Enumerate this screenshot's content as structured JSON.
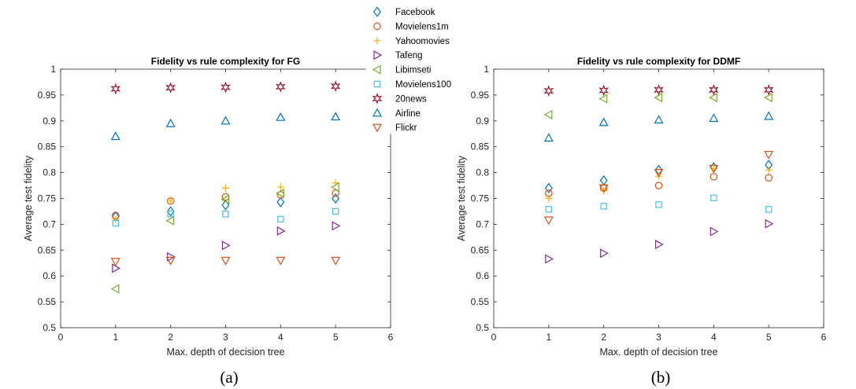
{
  "panels": [
    {
      "title": "Fidelity vs rule complexity for FG",
      "caption": "(a)",
      "ylabel": "Average test fidelity",
      "xlabel": "Max. depth of decision tree",
      "xticks": [
        "0",
        "1",
        "2",
        "3",
        "4",
        "5",
        "6"
      ],
      "yticks": [
        "0.5",
        "0.55",
        "0.6",
        "0.65",
        "0.7",
        "0.75",
        "0.8",
        "0.85",
        "0.9",
        "0.95",
        "1"
      ]
    },
    {
      "title": "Fidelity vs rule complexity for DDMF",
      "caption": "(b)",
      "ylabel": "Average test fidelity",
      "xlabel": "Max. depth of decision tree",
      "xticks": [
        "0",
        "1",
        "2",
        "3",
        "4",
        "5",
        "6"
      ],
      "yticks": [
        "0.5",
        "0.55",
        "0.6",
        "0.65",
        "0.7",
        "0.75",
        "0.8",
        "0.85",
        "0.9",
        "0.95",
        "1"
      ]
    }
  ],
  "legend": {
    "placement": "top-center, overlapping panel (a)",
    "entries": [
      {
        "label": "Facebook",
        "marker": "diamond",
        "color": "#0072BD"
      },
      {
        "label": "Movielens1m",
        "marker": "circle",
        "color": "#D95319"
      },
      {
        "label": "Yahoomovies",
        "marker": "plus",
        "color": "#EDB120"
      },
      {
        "label": "Tafeng",
        "marker": "triangle-right",
        "color": "#7E2F8E"
      },
      {
        "label": "Libimseti",
        "marker": "triangle-left",
        "color": "#77AC30"
      },
      {
        "label": "Movielens100",
        "marker": "square",
        "color": "#4DBEEE"
      },
      {
        "label": "20news",
        "marker": "hexagram",
        "color": "#A2142F"
      },
      {
        "label": "Airline",
        "marker": "triangle-up",
        "color": "#0072BD"
      },
      {
        "label": "Flickr",
        "marker": "triangle-down",
        "color": "#D95319"
      }
    ]
  },
  "chart_data": [
    {
      "type": "scatter",
      "title": "Fidelity vs rule complexity for FG",
      "xlabel": "Max. depth of decision tree",
      "ylabel": "Average test fidelity",
      "xlim": [
        0,
        6
      ],
      "ylim": [
        0.5,
        1
      ],
      "grid": false,
      "x": [
        1,
        2,
        3,
        4,
        5
      ],
      "series": [
        {
          "name": "Facebook",
          "values": [
            0.715,
            0.725,
            0.737,
            0.743,
            0.75
          ]
        },
        {
          "name": "Movielens1m",
          "values": [
            0.717,
            0.745,
            0.753,
            0.757,
            0.76
          ]
        },
        {
          "name": "Yahoomovies",
          "values": [
            0.71,
            0.745,
            0.77,
            0.772,
            0.78
          ]
        },
        {
          "name": "Tafeng",
          "values": [
            0.615,
            0.637,
            0.659,
            0.687,
            0.697
          ]
        },
        {
          "name": "Libimseti",
          "values": [
            0.575,
            0.707,
            0.748,
            0.76,
            0.772
          ]
        },
        {
          "name": "Movielens100",
          "values": [
            0.702,
            0.72,
            0.72,
            0.71,
            0.725
          ]
        },
        {
          "name": "20news",
          "values": [
            0.962,
            0.964,
            0.965,
            0.966,
            0.967
          ]
        },
        {
          "name": "Airline",
          "values": [
            0.87,
            0.895,
            0.9,
            0.907,
            0.908
          ]
        },
        {
          "name": "Flickr",
          "values": [
            0.628,
            0.63,
            0.63,
            0.63,
            0.63
          ]
        }
      ]
    },
    {
      "type": "scatter",
      "title": "Fidelity vs rule complexity for DDMF",
      "xlabel": "Max. depth of decision tree",
      "ylabel": "Average test fidelity",
      "xlim": [
        0,
        6
      ],
      "ylim": [
        0.5,
        1
      ],
      "grid": false,
      "x": [
        1,
        2,
        3,
        4,
        5
      ],
      "series": [
        {
          "name": "Facebook",
          "values": [
            0.77,
            0.785,
            0.805,
            0.81,
            0.815
          ]
        },
        {
          "name": "Movielens1m",
          "values": [
            0.76,
            0.77,
            0.775,
            0.792,
            0.79
          ]
        },
        {
          "name": "Yahoomovies",
          "values": [
            0.75,
            0.765,
            0.793,
            0.808,
            0.805
          ]
        },
        {
          "name": "Tafeng",
          "values": [
            0.633,
            0.644,
            0.661,
            0.686,
            0.701
          ]
        },
        {
          "name": "Libimseti",
          "values": [
            0.912,
            0.943,
            0.945,
            0.945,
            0.945
          ]
        },
        {
          "name": "Movielens100",
          "values": [
            0.729,
            0.735,
            0.738,
            0.751,
            0.729
          ]
        },
        {
          "name": "20news",
          "values": [
            0.958,
            0.959,
            0.96,
            0.96,
            0.96
          ]
        },
        {
          "name": "Airline",
          "values": [
            0.867,
            0.897,
            0.902,
            0.905,
            0.909
          ]
        },
        {
          "name": "Flickr",
          "values": [
            0.708,
            0.77,
            0.8,
            0.808,
            0.835
          ]
        }
      ]
    }
  ]
}
